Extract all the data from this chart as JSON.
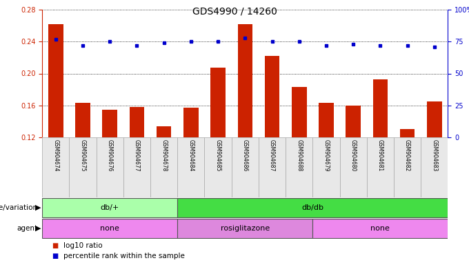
{
  "title": "GDS4990 / 14260",
  "samples": [
    "GSM904674",
    "GSM904675",
    "GSM904676",
    "GSM904677",
    "GSM904678",
    "GSM904684",
    "GSM904685",
    "GSM904686",
    "GSM904687",
    "GSM904688",
    "GSM904679",
    "GSM904680",
    "GSM904681",
    "GSM904682",
    "GSM904683"
  ],
  "log10_ratio": [
    0.262,
    0.163,
    0.155,
    0.158,
    0.134,
    0.157,
    0.207,
    0.262,
    0.222,
    0.183,
    0.163,
    0.16,
    0.193,
    0.13,
    0.165
  ],
  "percentile": [
    77,
    72,
    75,
    72,
    74,
    75,
    75,
    78,
    75,
    75,
    72,
    73,
    72,
    72,
    71
  ],
  "ylim_left": [
    0.12,
    0.28
  ],
  "ylim_right": [
    0,
    100
  ],
  "yticks_left": [
    0.12,
    0.16,
    0.2,
    0.24,
    0.28
  ],
  "yticks_right": [
    0,
    25,
    50,
    75,
    100
  ],
  "bar_color": "#cc2200",
  "dot_color": "#0000cc",
  "bg_color": "#ffffff",
  "genotype_groups": [
    {
      "label": "db/+",
      "start": 0,
      "end": 5,
      "color": "#aaffaa"
    },
    {
      "label": "db/db",
      "start": 5,
      "end": 15,
      "color": "#44dd44"
    }
  ],
  "agent_groups": [
    {
      "label": "none",
      "start": 0,
      "end": 5,
      "color": "#ee88ee"
    },
    {
      "label": "rosiglitazone",
      "start": 5,
      "end": 10,
      "color": "#dd88dd"
    },
    {
      "label": "none",
      "start": 10,
      "end": 15,
      "color": "#ee88ee"
    }
  ],
  "legend_red": "log10 ratio",
  "legend_blue": "percentile rank within the sample",
  "title_fontsize": 10,
  "tick_fontsize": 7,
  "label_fontsize": 7.5,
  "sample_fontsize": 5.5,
  "row_label_fontsize": 7.5,
  "group_fontsize": 8
}
